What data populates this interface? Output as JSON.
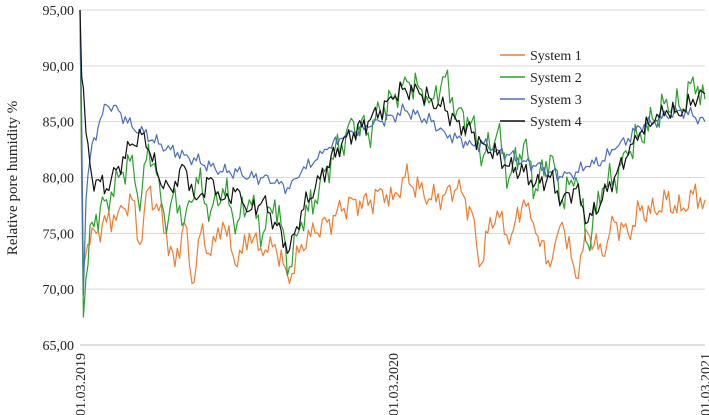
{
  "chart_data": {
    "type": "line",
    "ylabel": "Relative pore humidity %",
    "ylim": [
      65,
      95
    ],
    "ytick_values": [
      65,
      70,
      75,
      80,
      85,
      90,
      95
    ],
    "ytick_labels": [
      "65,00",
      "70,00",
      "75,00",
      "80,00",
      "85,00",
      "90,00",
      "95,00"
    ],
    "xlim": [
      "2019-03-01",
      "2021-03-01"
    ],
    "xtick_values": [
      "2019-03-01",
      "2020-03-01",
      "2021-03-01"
    ],
    "xtick_labels": [
      "01.03.2019",
      "01.03.2020",
      "01.03.2021"
    ],
    "grid": true,
    "legend_position": "top-right",
    "series": [
      {
        "name": "System 1",
        "color": "#ed7d31",
        "points": [
          [
            "2019-03-01",
            95.0
          ],
          [
            "2019-03-03",
            80.0
          ],
          [
            "2019-03-05",
            72.0
          ],
          [
            "2019-03-10",
            74.0
          ],
          [
            "2019-03-20",
            75.0
          ],
          [
            "2019-04-01",
            76.0
          ],
          [
            "2019-04-15",
            77.0
          ],
          [
            "2019-05-01",
            78.0
          ],
          [
            "2019-05-10",
            74.0
          ],
          [
            "2019-05-20",
            79.0
          ],
          [
            "2019-06-01",
            77.0
          ],
          [
            "2019-06-10",
            75.0
          ],
          [
            "2019-06-20",
            72.0
          ],
          [
            "2019-07-01",
            76.0
          ],
          [
            "2019-07-10",
            70.5
          ],
          [
            "2019-07-20",
            75.0
          ],
          [
            "2019-08-01",
            73.0
          ],
          [
            "2019-08-15",
            76.0
          ],
          [
            "2019-09-01",
            72.0
          ],
          [
            "2019-09-15",
            75.0
          ],
          [
            "2019-10-01",
            73.0
          ],
          [
            "2019-10-15",
            74.0
          ],
          [
            "2019-11-01",
            70.5
          ],
          [
            "2019-11-15",
            74.0
          ],
          [
            "2019-12-01",
            75.0
          ],
          [
            "2019-12-15",
            76.0
          ],
          [
            "2020-01-01",
            77.0
          ],
          [
            "2020-01-15",
            78.0
          ],
          [
            "2020-02-01",
            77.5
          ],
          [
            "2020-02-15",
            79.0
          ],
          [
            "2020-03-01",
            78.0
          ],
          [
            "2020-03-15",
            80.0
          ],
          [
            "2020-04-01",
            79.0
          ],
          [
            "2020-04-15",
            78.0
          ],
          [
            "2020-05-01",
            78.5
          ],
          [
            "2020-05-15",
            79.0
          ],
          [
            "2020-06-01",
            77.0
          ],
          [
            "2020-06-10",
            72.0
          ],
          [
            "2020-06-20",
            75.0
          ],
          [
            "2020-07-01",
            77.0
          ],
          [
            "2020-07-15",
            74.0
          ],
          [
            "2020-08-01",
            78.0
          ],
          [
            "2020-08-15",
            75.0
          ],
          [
            "2020-09-01",
            72.0
          ],
          [
            "2020-09-15",
            76.0
          ],
          [
            "2020-10-01",
            71.0
          ],
          [
            "2020-10-15",
            75.0
          ],
          [
            "2020-11-01",
            73.0
          ],
          [
            "2020-11-15",
            76.0
          ],
          [
            "2020-12-01",
            75.0
          ],
          [
            "2020-12-15",
            77.0
          ],
          [
            "2021-01-01",
            77.0
          ],
          [
            "2021-01-15",
            78.0
          ],
          [
            "2021-02-01",
            77.0
          ],
          [
            "2021-02-15",
            78.5
          ],
          [
            "2021-03-01",
            78.0
          ]
        ]
      },
      {
        "name": "System 2",
        "color": "#2ca02c",
        "points": [
          [
            "2019-03-01",
            95.0
          ],
          [
            "2019-03-03",
            80.0
          ],
          [
            "2019-03-05",
            67.5
          ],
          [
            "2019-03-08",
            71.0
          ],
          [
            "2019-03-15",
            76.0
          ],
          [
            "2019-04-01",
            78.0
          ],
          [
            "2019-04-15",
            80.0
          ],
          [
            "2019-05-01",
            82.0
          ],
          [
            "2019-05-10",
            77.0
          ],
          [
            "2019-05-20",
            83.0
          ],
          [
            "2019-06-01",
            80.0
          ],
          [
            "2019-06-10",
            75.0
          ],
          [
            "2019-06-20",
            79.0
          ],
          [
            "2019-07-01",
            76.0
          ],
          [
            "2019-07-15",
            80.0
          ],
          [
            "2019-08-01",
            77.0
          ],
          [
            "2019-08-15",
            79.0
          ],
          [
            "2019-09-01",
            76.0
          ],
          [
            "2019-09-15",
            78.0
          ],
          [
            "2019-10-01",
            75.0
          ],
          [
            "2019-10-15",
            78.0
          ],
          [
            "2019-11-01",
            72.0
          ],
          [
            "2019-11-15",
            76.0
          ],
          [
            "2019-12-01",
            78.0
          ],
          [
            "2019-12-15",
            81.0
          ],
          [
            "2020-01-01",
            83.0
          ],
          [
            "2020-01-15",
            85.0
          ],
          [
            "2020-02-01",
            84.0
          ],
          [
            "2020-02-15",
            86.0
          ],
          [
            "2020-03-01",
            87.0
          ],
          [
            "2020-03-15",
            89.0
          ],
          [
            "2020-04-01",
            88.0
          ],
          [
            "2020-04-15",
            87.0
          ],
          [
            "2020-05-01",
            89.0
          ],
          [
            "2020-05-15",
            86.0
          ],
          [
            "2020-06-01",
            85.0
          ],
          [
            "2020-06-15",
            82.0
          ],
          [
            "2020-07-01",
            84.0
          ],
          [
            "2020-07-15",
            80.0
          ],
          [
            "2020-08-01",
            83.0
          ],
          [
            "2020-08-15",
            79.0
          ],
          [
            "2020-09-01",
            82.0
          ],
          [
            "2020-09-15",
            78.0
          ],
          [
            "2020-10-01",
            80.0
          ],
          [
            "2020-10-15",
            74.0
          ],
          [
            "2020-11-01",
            79.0
          ],
          [
            "2020-11-15",
            80.0
          ],
          [
            "2020-12-01",
            82.0
          ],
          [
            "2020-12-15",
            84.0
          ],
          [
            "2021-01-01",
            85.0
          ],
          [
            "2021-01-15",
            87.0
          ],
          [
            "2021-02-01",
            86.0
          ],
          [
            "2021-02-15",
            89.0
          ],
          [
            "2021-03-01",
            87.0
          ]
        ]
      },
      {
        "name": "System 3",
        "color": "#4a6fb5",
        "points": [
          [
            "2019-03-01",
            95.0
          ],
          [
            "2019-03-03",
            85.0
          ],
          [
            "2019-03-05",
            69.5
          ],
          [
            "2019-03-08",
            78.0
          ],
          [
            "2019-03-15",
            83.0
          ],
          [
            "2019-04-01",
            86.5
          ],
          [
            "2019-04-15",
            86.0
          ],
          [
            "2019-05-01",
            84.5
          ],
          [
            "2019-05-15",
            84.0
          ],
          [
            "2019-06-01",
            83.0
          ],
          [
            "2019-06-15",
            82.5
          ],
          [
            "2019-07-01",
            82.0
          ],
          [
            "2019-07-15",
            81.5
          ],
          [
            "2019-08-01",
            81.0
          ],
          [
            "2019-08-15",
            80.5
          ],
          [
            "2019-09-01",
            80.5
          ],
          [
            "2019-09-15",
            80.0
          ],
          [
            "2019-10-01",
            80.0
          ],
          [
            "2019-10-15",
            79.5
          ],
          [
            "2019-11-01",
            79.0
          ],
          [
            "2019-11-15",
            80.5
          ],
          [
            "2019-12-01",
            81.5
          ],
          [
            "2019-12-15",
            82.5
          ],
          [
            "2020-01-01",
            83.5
          ],
          [
            "2020-01-15",
            84.0
          ],
          [
            "2020-02-01",
            84.5
          ],
          [
            "2020-02-15",
            85.0
          ],
          [
            "2020-03-01",
            85.5
          ],
          [
            "2020-03-15",
            86.0
          ],
          [
            "2020-04-01",
            85.5
          ],
          [
            "2020-04-15",
            85.0
          ],
          [
            "2020-05-01",
            84.0
          ],
          [
            "2020-05-15",
            83.5
          ],
          [
            "2020-06-01",
            83.0
          ],
          [
            "2020-06-15",
            83.0
          ],
          [
            "2020-07-01",
            82.5
          ],
          [
            "2020-07-15",
            82.0
          ],
          [
            "2020-08-01",
            81.5
          ],
          [
            "2020-08-15",
            81.0
          ],
          [
            "2020-09-01",
            80.5
          ],
          [
            "2020-09-15",
            80.0
          ],
          [
            "2020-10-01",
            80.5
          ],
          [
            "2020-10-15",
            81.0
          ],
          [
            "2020-11-01",
            81.5
          ],
          [
            "2020-11-15",
            82.5
          ],
          [
            "2020-12-01",
            83.5
          ],
          [
            "2020-12-15",
            84.5
          ],
          [
            "2021-01-01",
            85.0
          ],
          [
            "2021-01-15",
            85.5
          ],
          [
            "2021-02-01",
            86.0
          ],
          [
            "2021-02-15",
            85.5
          ],
          [
            "2021-03-01",
            85.0
          ]
        ]
      },
      {
        "name": "System 4",
        "color": "#111111",
        "points": [
          [
            "2019-03-01",
            95.0
          ],
          [
            "2019-03-03",
            89.0
          ],
          [
            "2019-03-05",
            88.0
          ],
          [
            "2019-03-08",
            84.0
          ],
          [
            "2019-03-15",
            80.0
          ],
          [
            "2019-04-01",
            79.0
          ],
          [
            "2019-04-15",
            81.0
          ],
          [
            "2019-05-01",
            83.0
          ],
          [
            "2019-05-15",
            84.0
          ],
          [
            "2019-06-01",
            80.0
          ],
          [
            "2019-06-15",
            79.0
          ],
          [
            "2019-07-01",
            81.0
          ],
          [
            "2019-07-15",
            78.0
          ],
          [
            "2019-08-01",
            80.0
          ],
          [
            "2019-08-15",
            78.0
          ],
          [
            "2019-09-01",
            79.0
          ],
          [
            "2019-09-15",
            77.0
          ],
          [
            "2019-10-01",
            78.0
          ],
          [
            "2019-10-15",
            76.0
          ],
          [
            "2019-11-01",
            73.5
          ],
          [
            "2019-11-15",
            77.0
          ],
          [
            "2019-12-01",
            79.0
          ],
          [
            "2019-12-15",
            81.0
          ],
          [
            "2020-01-01",
            83.0
          ],
          [
            "2020-01-15",
            84.0
          ],
          [
            "2020-02-01",
            85.0
          ],
          [
            "2020-02-15",
            86.0
          ],
          [
            "2020-03-01",
            87.0
          ],
          [
            "2020-03-15",
            88.0
          ],
          [
            "2020-04-01",
            87.5
          ],
          [
            "2020-04-15",
            87.0
          ],
          [
            "2020-05-01",
            86.0
          ],
          [
            "2020-05-15",
            85.0
          ],
          [
            "2020-06-01",
            84.0
          ],
          [
            "2020-06-15",
            83.0
          ],
          [
            "2020-07-01",
            82.0
          ],
          [
            "2020-07-15",
            81.0
          ],
          [
            "2020-08-01",
            80.5
          ],
          [
            "2020-08-15",
            79.5
          ],
          [
            "2020-09-01",
            80.0
          ],
          [
            "2020-09-15",
            78.0
          ],
          [
            "2020-10-01",
            79.0
          ],
          [
            "2020-10-15",
            76.0
          ],
          [
            "2020-11-01",
            78.0
          ],
          [
            "2020-11-15",
            80.0
          ],
          [
            "2020-12-01",
            82.0
          ],
          [
            "2020-12-15",
            84.0
          ],
          [
            "2021-01-01",
            85.0
          ],
          [
            "2021-01-15",
            86.0
          ],
          [
            "2021-02-01",
            85.5
          ],
          [
            "2021-02-15",
            87.0
          ],
          [
            "2021-03-01",
            87.5
          ]
        ]
      }
    ]
  }
}
